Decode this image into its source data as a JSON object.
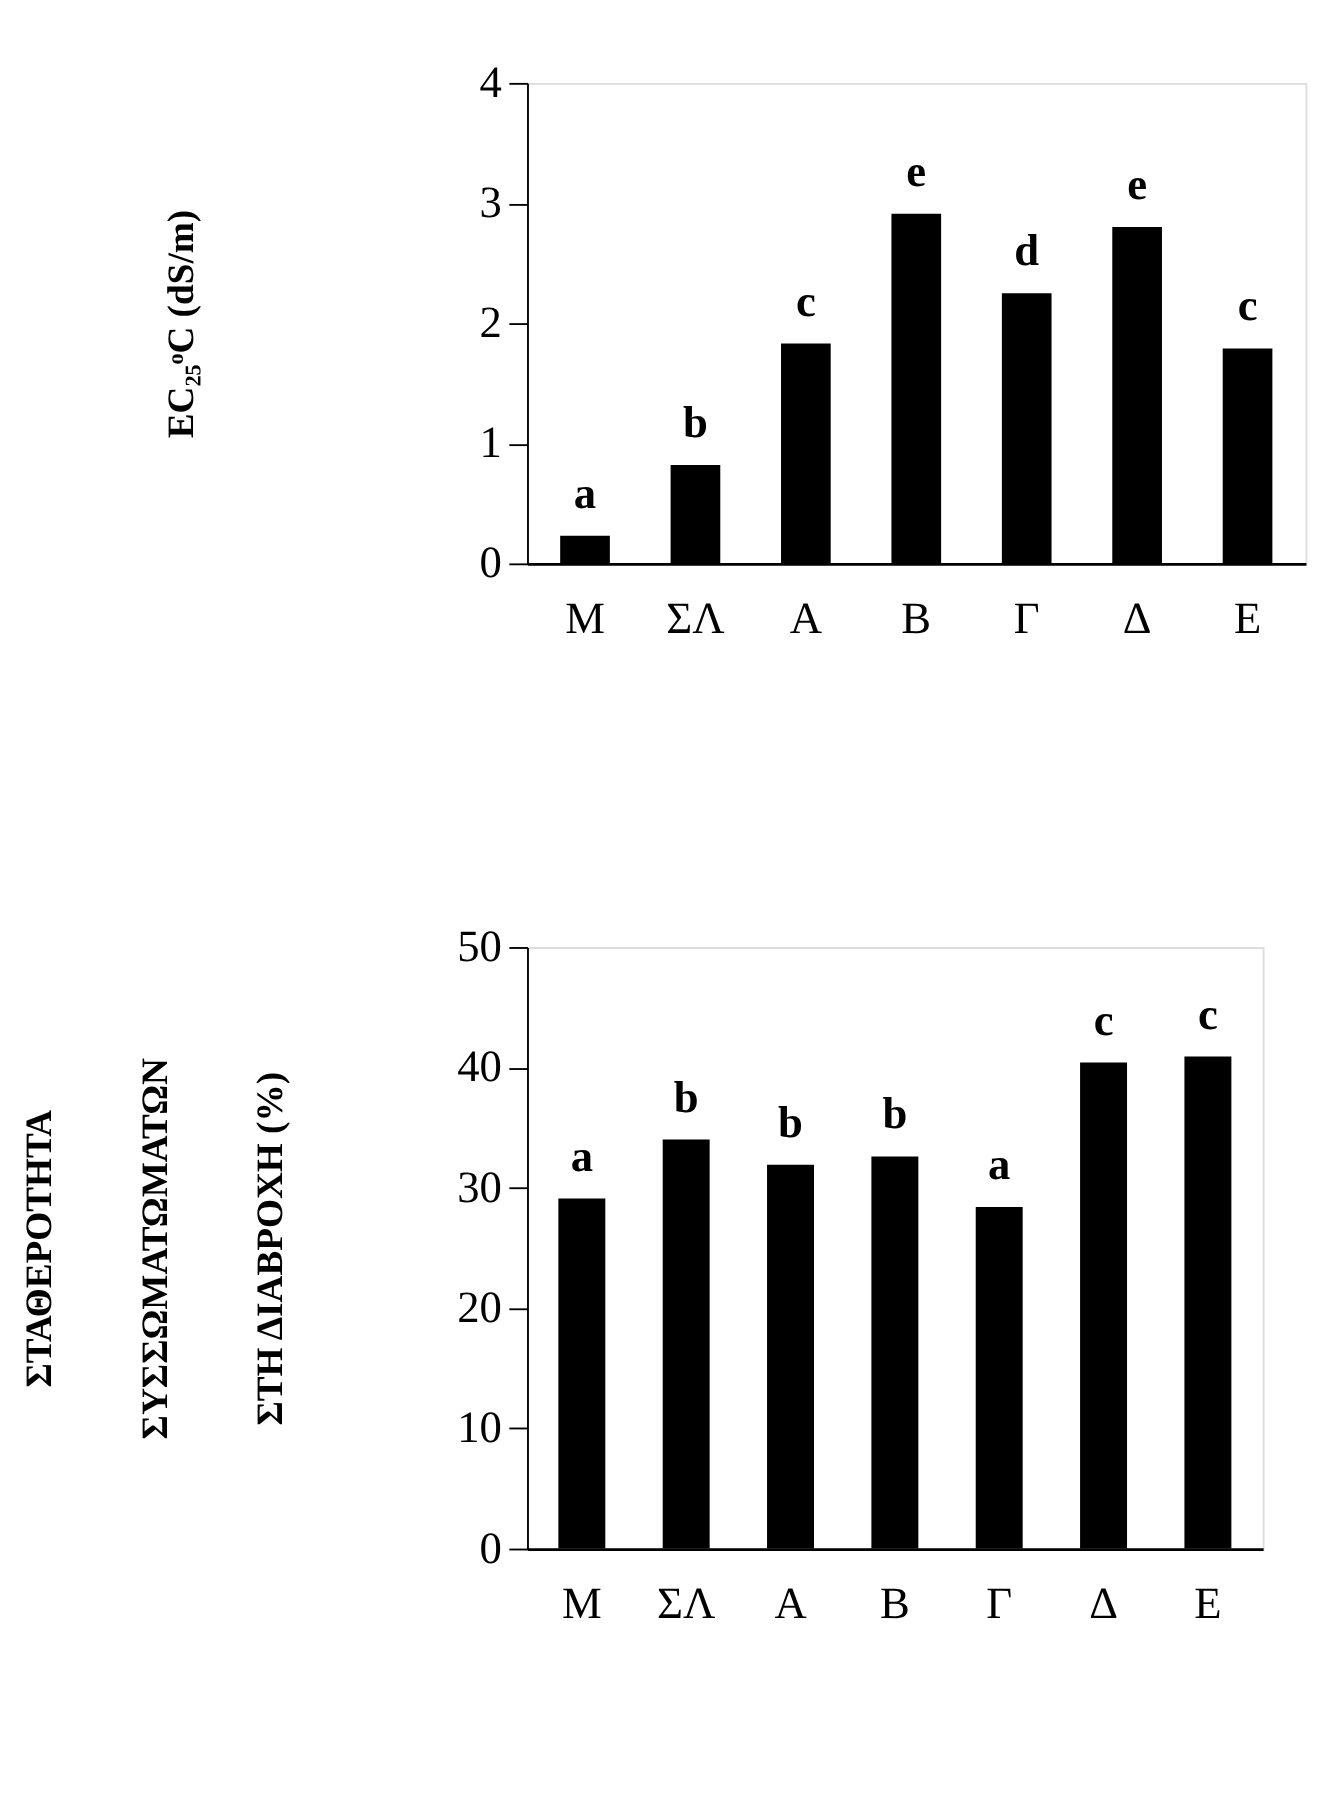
{
  "chart_data": [
    {
      "type": "bar",
      "ylabel": "EC₂₅ᵒC (dS/m)",
      "categories": [
        "Μ",
        "ΣΛ",
        "Α",
        "Β",
        "Γ",
        "Δ",
        "Ε"
      ],
      "values": [
        0.23,
        0.82,
        1.83,
        2.91,
        2.25,
        2.8,
        1.79
      ],
      "color": "#000000",
      "ylim": [
        0,
        4
      ],
      "yticks": [
        0,
        1,
        2,
        3,
        4
      ],
      "grid": false,
      "annotations": [
        {
          "text": "a",
          "x": "Μ",
          "y": 0.23
        },
        {
          "text": "b",
          "x": "ΣΛ",
          "y": 0.82
        },
        {
          "text": "c",
          "x": "Α",
          "y": 1.83
        },
        {
          "text": "e",
          "x": "Β",
          "y": 2.91
        },
        {
          "text": "d",
          "x": "Γ",
          "y": 2.25
        },
        {
          "text": "e",
          "x": "Δ",
          "y": 2.8
        },
        {
          "text": "c",
          "x": "Ε",
          "y": 1.79
        }
      ]
    },
    {
      "type": "bar",
      "ylabel": "ΣΤΑΘΕΡΟΤΗΤΑ\nΣΥΣΣΩΜΑΤΩΜΑΤΩΝ\nΣΤΗ ΔΙΑΒΡΟΧΗ (%)",
      "categories": [
        "Μ",
        "ΣΛ",
        "Α",
        "Β",
        "Γ",
        "Δ",
        "Ε"
      ],
      "values": [
        29.1,
        34.0,
        31.9,
        32.6,
        28.4,
        40.4,
        40.9
      ],
      "color": "#000000",
      "ylim": [
        0,
        50
      ],
      "yticks": [
        0,
        10,
        20,
        30,
        40,
        50
      ],
      "grid": false,
      "annotations": [
        {
          "text": "a",
          "x": "Μ",
          "y": 29.1
        },
        {
          "text": "b",
          "x": "ΣΛ",
          "y": 34.0
        },
        {
          "text": "b",
          "x": "Α",
          "y": 31.9
        },
        {
          "text": "b",
          "x": "Β",
          "y": 32.6
        },
        {
          "text": "a",
          "x": "Γ",
          "y": 28.4
        },
        {
          "text": "c",
          "x": "Δ",
          "y": 40.4
        },
        {
          "text": "c",
          "x": "Ε",
          "y": 40.9
        }
      ]
    }
  ]
}
